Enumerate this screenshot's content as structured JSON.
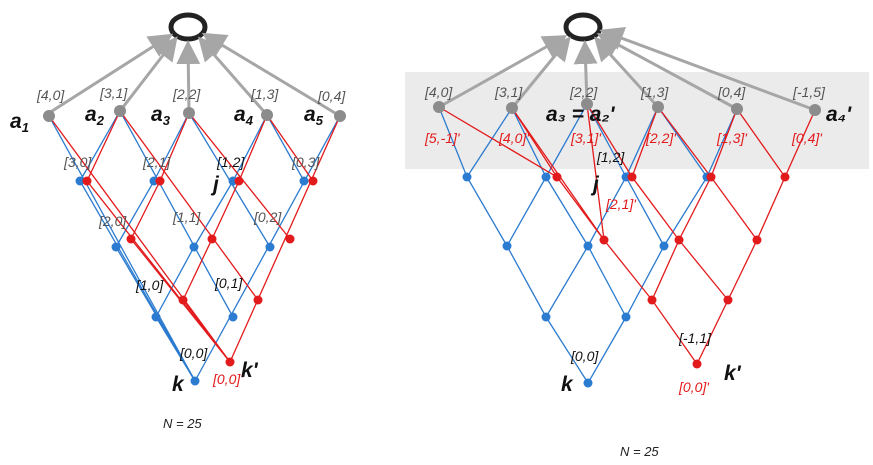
{
  "colors": {
    "blue": "#2b7bd0",
    "red": "#e31a1c",
    "gray": "#8c8c8c",
    "arrow": "#a6a6a6",
    "highlight": "#ebebeb"
  },
  "left_panel": {
    "top_labels": [
      "[4,0]",
      "[3,1]",
      "[2,2]",
      "[1,3]",
      "[0,4]"
    ],
    "mid_labels": [
      "[3,0]",
      "[2,1]",
      "[1,2]",
      "[0,3]"
    ],
    "row3_labels": [
      "[2,0]",
      "[1,1]",
      "[0,2]"
    ],
    "row4_labels": [
      "[1,0]",
      "[0,1]"
    ],
    "bottom_label": "[0,0]",
    "bottom_red_label": "[0,0]'",
    "a_names": [
      "a",
      "a",
      "a",
      "a",
      "a"
    ],
    "a_subs": [
      "1",
      "2",
      "3",
      "4",
      "5"
    ],
    "j": "j",
    "k": "k",
    "k_prime": "k'",
    "n_label": "N = 25"
  },
  "right_panel": {
    "top_labels": [
      "[4,0]",
      "[3,1]",
      "[2,2]",
      "[1,3]",
      "[0,4]",
      "[-1,5]"
    ],
    "red_labels": [
      "[5,-1]'",
      "[4,0]'",
      "[3,1]'",
      "[2,2]'",
      "[1,3]'",
      "[0,4]'"
    ],
    "mid_label": "[1,2]",
    "mid_red_label": "[2,1]'",
    "neg_label": "[-1,1]",
    "bottom_label": "[0,0]",
    "bottom_red_label": "[0,0]'",
    "a3_eq": "a₃ = a₂'",
    "a4_prime": "a₄'",
    "j": "j",
    "k": "k",
    "k_prime": "k'",
    "n_label": "N = 25"
  }
}
